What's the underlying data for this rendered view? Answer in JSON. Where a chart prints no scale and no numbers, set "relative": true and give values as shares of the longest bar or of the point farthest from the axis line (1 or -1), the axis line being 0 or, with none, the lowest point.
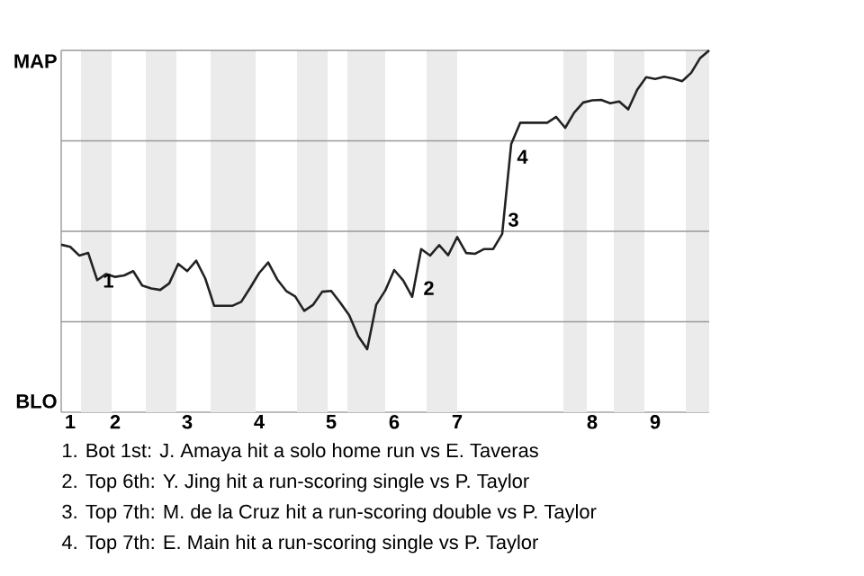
{
  "chart_data": {
    "type": "line",
    "relative": true,
    "categories": [
      null,
      "1",
      null,
      null,
      null,
      null,
      "2",
      null,
      null,
      null,
      null,
      null,
      null,
      null,
      "3",
      null,
      null,
      null,
      null,
      null,
      null,
      null,
      "4",
      null,
      null,
      null,
      null,
      null,
      null,
      null,
      "5",
      null,
      null,
      null,
      null,
      null,
      null,
      "6",
      null,
      null,
      null,
      null,
      null,
      null,
      "7",
      null,
      null,
      null,
      null,
      null,
      null,
      null,
      null,
      null,
      null,
      null,
      null,
      null,
      null,
      "8",
      null,
      null,
      null,
      null,
      null,
      null,
      "9",
      null,
      null,
      null,
      null,
      null,
      null
    ],
    "series": [
      {
        "color": "#222222",
        "values": [
          0.463,
          0.457,
          0.433,
          0.44,
          0.365,
          0.382,
          0.374,
          0.378,
          0.39,
          0.35,
          0.342,
          0.338,
          0.356,
          0.41,
          0.39,
          0.419,
          0.37,
          0.294,
          0.294,
          0.294,
          0.305,
          0.344,
          0.385,
          0.414,
          0.367,
          0.335,
          0.32,
          0.28,
          0.297,
          0.333,
          0.335,
          0.303,
          0.268,
          0.21,
          0.174,
          0.297,
          0.336,
          0.393,
          0.364,
          0.319,
          0.451,
          0.433,
          0.462,
          0.434,
          0.484,
          0.44,
          0.438,
          0.451,
          0.451,
          0.493,
          0.741,
          0.8,
          0.8,
          0.8,
          0.8,
          0.816,
          0.786,
          0.828,
          0.856,
          0.862,
          0.863,
          0.854,
          0.859,
          0.837,
          0.891,
          0.926,
          0.921,
          0.927,
          0.922,
          0.915,
          0.938,
          0.979,
          1.0
        ]
      }
    ],
    "marker": "none",
    "line_style": "solid",
    "ref_lines": [
      {
        "axis": "y",
        "value": 0.25,
        "color": "#999999"
      },
      {
        "axis": "y",
        "value": 0.5,
        "color": "#999999"
      },
      {
        "axis": "y",
        "value": 0.75,
        "color": "#999999"
      },
      {
        "axis": "y",
        "value": 1.0,
        "color": "#999999"
      }
    ],
    "annotations": [
      "MAP",
      "BLO",
      "1",
      "2",
      "3",
      "4",
      "1. Bot 1st: J. Amaya hit a solo home run vs E. Taveras",
      "2. Top 6th: Y. Jing hit a run-scoring single vs P. Taylor",
      "3. Top 7th: M. de la Cruz hit a run-scoring double vs P. Taylor",
      "4. Top 7th: E. Main hit a run-scoring single vs P. Taylor"
    ]
  }
}
